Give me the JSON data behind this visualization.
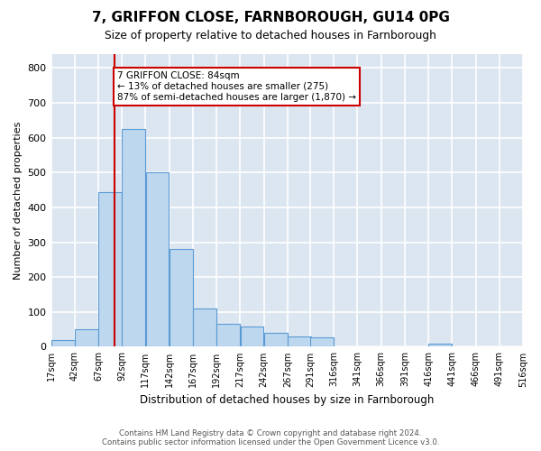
{
  "title": "7, GRIFFON CLOSE, FARNBOROUGH, GU14 0PG",
  "subtitle": "Size of property relative to detached houses in Farnborough",
  "xlabel": "Distribution of detached houses by size in Farnborough",
  "ylabel": "Number of detached properties",
  "footer_line1": "Contains HM Land Registry data © Crown copyright and database right 2024.",
  "footer_line2": "Contains public sector information licensed under the Open Government Licence v3.0.",
  "bar_color": "#bdd7ee",
  "bar_edge_color": "#5b9bd5",
  "background_color": "#dce6f1",
  "grid_color": "#ffffff",
  "property_line_color": "#cc0000",
  "annotation_text": "7 GRIFFON CLOSE: 84sqm\n← 13% of detached houses are smaller (275)\n87% of semi-detached houses are larger (1,870) →",
  "bins": [
    17,
    42,
    67,
    92,
    117,
    142,
    167,
    192,
    217,
    242,
    267,
    291,
    316,
    341,
    366,
    391,
    416,
    441,
    466,
    491,
    516
  ],
  "bin_labels": [
    "17sqm",
    "42sqm",
    "67sqm",
    "92sqm",
    "117sqm",
    "142sqm",
    "167sqm",
    "192sqm",
    "217sqm",
    "242sqm",
    "267sqm",
    "291sqm",
    "316sqm",
    "341sqm",
    "366sqm",
    "391sqm",
    "416sqm",
    "441sqm",
    "466sqm",
    "491sqm",
    "516sqm"
  ],
  "values": [
    18,
    50,
    445,
    625,
    500,
    280,
    110,
    65,
    58,
    40,
    30,
    28,
    0,
    0,
    0,
    0,
    8,
    0,
    0,
    0
  ],
  "ylim": [
    0,
    840
  ],
  "yticks": [
    0,
    100,
    200,
    300,
    400,
    500,
    600,
    700,
    800
  ],
  "property_line_x": 84
}
